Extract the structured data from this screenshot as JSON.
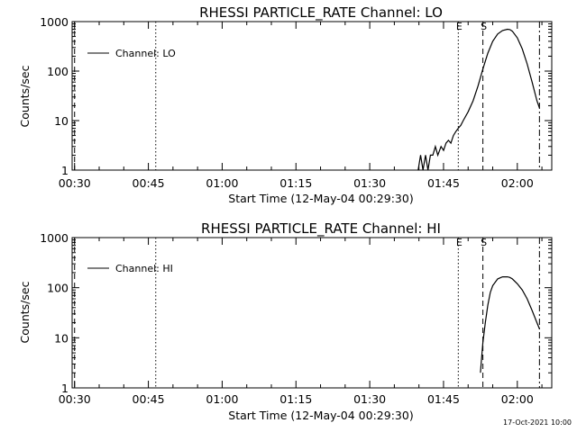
{
  "footer": "17-Oct-2021 10:00",
  "chart_data": [
    {
      "type": "line",
      "title": "RHESSI PARTICLE_RATE Channel: LO",
      "xlabel": "Start Time (12-May-04 00:29:30)",
      "ylabel": "Counts/sec",
      "yscale": "log",
      "xlim": [
        "00:29:30",
        "02:07:00"
      ],
      "ylim": [
        1,
        1000
      ],
      "xticks": [
        "00:30",
        "00:45",
        "01:00",
        "01:15",
        "01:30",
        "01:45",
        "02:00"
      ],
      "yticks": [
        "1",
        "10",
        "100",
        "1000"
      ],
      "legend": {
        "placement": "top-left",
        "entries": [
          "Channel: LO"
        ]
      },
      "markers": [
        {
          "time": "00:30:00",
          "style": "dashed",
          "label": ""
        },
        {
          "time": "00:46:30",
          "style": "dotted",
          "label": ""
        },
        {
          "time": "01:48:00",
          "style": "dotted",
          "label": "E"
        },
        {
          "time": "01:53:00",
          "style": "dashed",
          "label": "S"
        },
        {
          "time": "02:04:30",
          "style": "dashdot",
          "label": ""
        }
      ],
      "series": [
        {
          "name": "Channel: LO",
          "x": [
            "01:39:50",
            "01:40:20",
            "01:40:50",
            "01:41:20",
            "01:41:50",
            "01:42:20",
            "01:42:50",
            "01:43:20",
            "01:43:50",
            "01:44:30",
            "01:45:00",
            "01:45:30",
            "01:46:00",
            "01:46:30",
            "01:47:00",
            "01:47:30",
            "01:48:00",
            "01:48:30",
            "01:49:00",
            "01:50:00",
            "01:51:00",
            "01:52:00",
            "01:53:00",
            "01:54:00",
            "01:55:00",
            "01:56:00",
            "01:57:00",
            "01:58:00",
            "01:58:30",
            "01:59:00",
            "02:00:00",
            "02:01:00",
            "02:02:00",
            "02:03:00",
            "02:04:00",
            "02:04:30"
          ],
          "values": [
            1,
            2,
            1,
            2,
            1,
            2,
            2,
            3,
            2,
            3,
            2.5,
            3.5,
            4,
            3.5,
            5,
            6,
            7,
            8,
            10,
            15,
            25,
            50,
            110,
            230,
            400,
            560,
            660,
            700,
            690,
            640,
            470,
            280,
            140,
            60,
            25,
            18
          ]
        }
      ]
    },
    {
      "type": "line",
      "title": "RHESSI PARTICLE_RATE Channel: HI",
      "xlabel": "Start Time (12-May-04 00:29:30)",
      "ylabel": "Counts/sec",
      "yscale": "log",
      "xlim": [
        "00:29:30",
        "02:07:00"
      ],
      "ylim": [
        1,
        1000
      ],
      "xticks": [
        "00:30",
        "00:45",
        "01:00",
        "01:15",
        "01:30",
        "01:45",
        "02:00"
      ],
      "yticks": [
        "1",
        "10",
        "100",
        "1000"
      ],
      "legend": {
        "placement": "top-left",
        "entries": [
          "Channel: HI"
        ]
      },
      "markers": [
        {
          "time": "00:30:00",
          "style": "dashed",
          "label": ""
        },
        {
          "time": "00:46:30",
          "style": "dotted",
          "label": ""
        },
        {
          "time": "01:48:00",
          "style": "dotted",
          "label": "E"
        },
        {
          "time": "01:53:00",
          "style": "dashed",
          "label": "S"
        },
        {
          "time": "02:04:30",
          "style": "dashdot",
          "label": ""
        }
      ],
      "series": [
        {
          "name": "Channel: HI",
          "x": [
            "01:52:30",
            "01:52:45",
            "01:53:00",
            "01:53:30",
            "01:54:00",
            "01:54:30",
            "01:55:00",
            "01:56:00",
            "01:57:00",
            "01:58:00",
            "01:58:30",
            "01:59:00",
            "02:00:00",
            "02:01:00",
            "02:02:00",
            "02:03:00",
            "02:04:00",
            "02:04:30"
          ],
          "values": [
            2,
            4,
            8,
            20,
            45,
            80,
            110,
            150,
            165,
            165,
            160,
            150,
            120,
            90,
            60,
            35,
            20,
            15
          ]
        }
      ]
    }
  ]
}
